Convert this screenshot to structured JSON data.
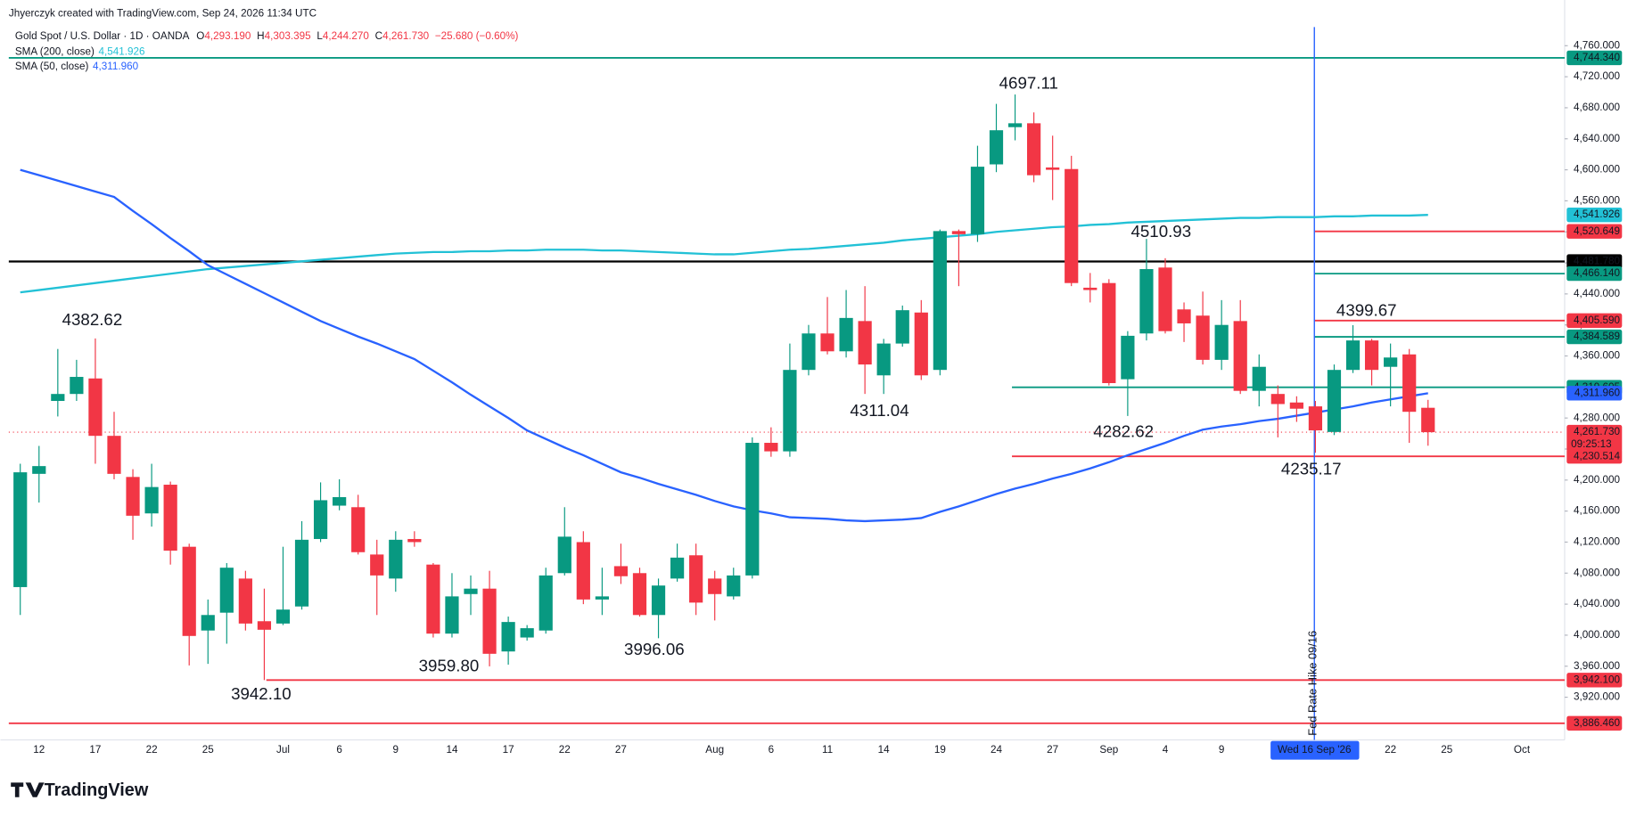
{
  "header": {
    "credit": "Jhyerczyk created with TradingView.com, Sep 24, 2026 11:34 UTC",
    "symbol": "Gold Spot / U.S. Dollar · 1D · OANDA",
    "ohlc": [
      {
        "label": "O",
        "value": "4,293.190"
      },
      {
        "label": "H",
        "value": "4,303.395"
      },
      {
        "label": "L",
        "value": "4,244.270"
      },
      {
        "label": "C",
        "value": "4,261.730"
      }
    ],
    "change": "−25.680 (−0.60%)",
    "indicators": [
      {
        "name": "SMA (200, close)",
        "value": "4,541.926"
      },
      {
        "name": "SMA (50, close)",
        "value": "4,311.960"
      }
    ]
  },
  "brand": "TradingView",
  "chart_data": {
    "type": "candlestick",
    "categories": [
      null,
      "12",
      null,
      null,
      "17",
      null,
      null,
      "22",
      null,
      null,
      "25",
      null,
      null,
      null,
      "Jul",
      null,
      null,
      "6",
      null,
      null,
      "9",
      null,
      null,
      "14",
      null,
      null,
      "17",
      null,
      null,
      "22",
      null,
      null,
      "27",
      null,
      null,
      null,
      null,
      "Aug",
      null,
      null,
      "6",
      null,
      null,
      "11",
      null,
      null,
      "14",
      null,
      null,
      "19",
      null,
      null,
      "24",
      null,
      null,
      "27",
      null,
      null,
      "Sep",
      null,
      null,
      "4",
      null,
      null,
      "9",
      null,
      null,
      null,
      null,
      null,
      null,
      null,
      null,
      "22",
      null,
      null,
      "25",
      null,
      null,
      null,
      "Oct"
    ],
    "open": [
      4062,
      4208,
      4302,
      4311,
      4331,
      4257,
      4204,
      4157,
      4194,
      4114,
      4006,
      4029,
      4073,
      4018,
      4015,
      4037,
      4124,
      4167,
      4165,
      4104,
      4073,
      4124,
      4091,
      4002,
      4053,
      4060,
      3979,
      3997,
      4006,
      4080,
      4120,
      4046,
      4089,
      4080,
      4026,
      4073,
      4103,
      4073,
      4050,
      4077,
      4248,
      4237,
      4342,
      4389,
      4366,
      4405,
      4335,
      4376,
      4416,
      4342,
      4521,
      4517,
      4607,
      4655,
      4660,
      4603,
      4601,
      4448,
      4454,
      4330,
      4389,
      4474,
      4420,
      4412,
      4355,
      4405,
      4315,
      4311,
      4300,
      4295,
      4262,
      4342,
      4380,
      4346,
      4362,
      4293.19,
      null,
      null,
      null,
      null,
      null
    ],
    "high": [
      4221,
      4244,
      4369,
      4355,
      4382.62,
      4288,
      4214,
      4221,
      4198,
      4118,
      4046,
      4093,
      4083,
      4060,
      4114,
      4147,
      4197,
      4201,
      4181,
      4123,
      4134,
      4134,
      4093,
      4080,
      4077,
      4083,
      4024,
      4013,
      4087,
      4165,
      4134,
      4087,
      4118,
      4087,
      4073,
      4118,
      4118,
      4083,
      4087,
      4255,
      4268,
      4376,
      4400,
      4436,
      4445,
      4450,
      4382,
      4425,
      4432,
      4523,
      4523,
      4631,
      4685,
      4697.11,
      4674,
      4644,
      4618,
      4467,
      4459,
      4392,
      4510.93,
      4486,
      4429,
      4443,
      4432,
      4432,
      4362,
      4322,
      4308,
      4302,
      4349,
      4399.67,
      4382,
      4376,
      4369,
      4303.395,
      null,
      null,
      null,
      null,
      null
    ],
    "low": [
      4026,
      4171,
      4282,
      4302,
      4221,
      4201,
      4123,
      4140,
      4091,
      3961,
      3963,
      3989,
      4006,
      3942.1,
      4013,
      4033,
      4120,
      4161,
      4104,
      4026,
      4056,
      4114,
      3997,
      3997,
      4026,
      3959.8,
      3962,
      3993,
      4002,
      4077,
      4040,
      4026,
      4066,
      4024,
      3996.06,
      4069,
      4026,
      4019,
      4046,
      4073,
      4230,
      4230,
      4335,
      4362,
      4358,
      4311.04,
      4311,
      4372,
      4329,
      4335,
      4450,
      4507,
      4597,
      4638,
      4584,
      4561,
      4450,
      4429,
      4322,
      4282.62,
      4380,
      4389,
      4378,
      4349,
      4342,
      4311,
      4295,
      4255,
      4275,
      4235.17,
      4258,
      4338,
      4322,
      4295,
      4248,
      4244.27,
      null,
      null,
      null,
      null,
      null
    ],
    "close": [
      4210,
      4218,
      4311,
      4333,
      4257,
      4208,
      4154,
      4191,
      4109,
      3999,
      4026,
      4087,
      4015,
      4007,
      4033,
      4123,
      4174,
      4178,
      4107,
      4077,
      4123,
      4120,
      4002,
      4050,
      4060,
      3976,
      4017,
      4009,
      4077,
      4127,
      4046,
      4050,
      4076,
      4026,
      4064,
      4100,
      4042,
      4053,
      4077,
      4248,
      4237,
      4342,
      4389,
      4366,
      4409,
      4349,
      4376,
      4419,
      4335,
      4521,
      4517,
      4604,
      4651,
      4660,
      4593,
      4600,
      4454,
      4445,
      4325,
      4386,
      4472,
      4392,
      4402,
      4355,
      4400,
      4315,
      4346,
      4298,
      4292,
      4264,
      4342,
      4380,
      4342,
      4358,
      4288,
      4261.73,
      null,
      null,
      null,
      null,
      null
    ],
    "up_color": "#089981",
    "down_color": "#f23645",
    "series": [
      {
        "name": "SMA (200, close)",
        "color": "#22c1d6",
        "tag": "4,541.926",
        "values": [
          4442,
          4445,
          4448,
          4451,
          4454,
          4457,
          4460,
          4463,
          4466,
          4469,
          4472,
          4474,
          4476,
          4478,
          4480,
          4482,
          4484,
          4486,
          4488,
          4490,
          4492,
          4493,
          4494,
          4494,
          4495,
          4495,
          4496,
          4496,
          4497,
          4497,
          4497,
          4496,
          4496,
          4495,
          4494,
          4493,
          4492,
          4491,
          4491,
          4493,
          4495,
          4497,
          4498,
          4500,
          4502,
          4504,
          4506,
          4509,
          4511,
          4513,
          4515,
          4517,
          4520,
          4522,
          4524,
          4526,
          4527,
          4529,
          4530,
          4532,
          4533,
          4534,
          4535,
          4536,
          4537,
          4538,
          4538,
          4539,
          4539,
          4539,
          4540,
          4540,
          4541,
          4541,
          4541,
          4541.926,
          null,
          null,
          null,
          null,
          null
        ]
      },
      {
        "name": "SMA (50, close)",
        "color": "#2962ff",
        "tag": "4,311.960",
        "values": [
          4600,
          4593,
          4586,
          4579,
          4572,
          4565,
          4547,
          4530,
          4512,
          4495,
          4477,
          4465,
          4453,
          4441,
          4429,
          4417,
          4405,
          4395,
          4385,
          4376,
          4366,
          4356,
          4341,
          4326,
          4310,
          4295,
          4280,
          4264,
          4253,
          4242,
          4232,
          4221,
          4210,
          4203,
          4195,
          4188,
          4181,
          4173,
          4166,
          4161,
          4157,
          4152,
          4151,
          4150,
          4148,
          4147,
          4148,
          4149,
          4151,
          4159,
          4166,
          4174,
          4182,
          4189,
          4195,
          4202,
          4208,
          4215,
          4223,
          4232,
          4240,
          4248,
          4257,
          4265,
          4269,
          4272,
          4276,
          4279,
          4283,
          4287,
          4291,
          4295,
          4300,
          4304,
          4308,
          4311.96,
          null,
          null,
          null,
          null,
          null
        ]
      }
    ],
    "levels": [
      {
        "value": 4744.34,
        "label": "4,744.340",
        "color": "#089981"
      },
      {
        "value": 4520.649,
        "label": "4,520.649",
        "color": "#f23645"
      },
      {
        "value": 4481.78,
        "label": "4,481.780",
        "color": "#000000"
      },
      {
        "value": 4466.14,
        "label": "4,466.140",
        "color": "#089981"
      },
      {
        "value": 4405.59,
        "label": "4,405.590",
        "color": "#f23645"
      },
      {
        "value": 4384.589,
        "label": "4,384.589",
        "color": "#089981"
      },
      {
        "value": 4319.605,
        "label": "4,319.605",
        "color": "#089981"
      },
      {
        "value": 4230.514,
        "label": "4,230.514",
        "color": "#f23645"
      },
      {
        "value": 3942.1,
        "label": "3,942.100",
        "color": "#f23645"
      },
      {
        "value": 3886.46,
        "label": "3,886.460",
        "color": "#f23645"
      }
    ],
    "last_price": {
      "value": 4261.73,
      "label": "4,261.730",
      "countdown": "09:25:13",
      "color": "#f23645"
    },
    "annotations": [
      "4697.11",
      "4382.62",
      "4510.93",
      "4399.67",
      "4311.04",
      "4282.62",
      "4235.17",
      "3942.10",
      "3959.80",
      "3996.06"
    ],
    "event": {
      "text": "Fed Rate Hike 09/16",
      "date_label": "Wed 16 Sep '26",
      "color": "#2962ff"
    },
    "ylim": [
      3865,
      4784
    ],
    "yticks": [
      {
        "value": 3920,
        "label": "3,920.000"
      },
      {
        "value": 3960,
        "label": "3,960.000"
      },
      {
        "value": 4000,
        "label": "4,000.000"
      },
      {
        "value": 4040,
        "label": "4,040.000"
      },
      {
        "value": 4080,
        "label": "4,080.000"
      },
      {
        "value": 4120,
        "label": "4,120.000"
      },
      {
        "value": 4160,
        "label": "4,160.000"
      },
      {
        "value": 4200,
        "label": "4,200.000"
      },
      {
        "value": 4240,
        "label": "4,240.000"
      },
      {
        "value": 4280,
        "label": "4,280.000"
      },
      {
        "value": 4320,
        "label": "4,320.000"
      },
      {
        "value": 4360,
        "label": "4,360.000"
      },
      {
        "value": 4400,
        "label": "4,400.000"
      },
      {
        "value": 4440,
        "label": "4,440.000"
      },
      {
        "value": 4480,
        "label": "4,480.000"
      },
      {
        "value": 4520,
        "label": "4,520.000"
      },
      {
        "value": 4560,
        "label": "4,560.000"
      },
      {
        "value": 4600,
        "label": "4,600.000"
      },
      {
        "value": 4640,
        "label": "4,640.000"
      },
      {
        "value": 4680,
        "label": "4,680.000"
      },
      {
        "value": 4720,
        "label": "4,720.000"
      },
      {
        "value": 4760,
        "label": "4,760.000"
      }
    ],
    "grid": false
  }
}
